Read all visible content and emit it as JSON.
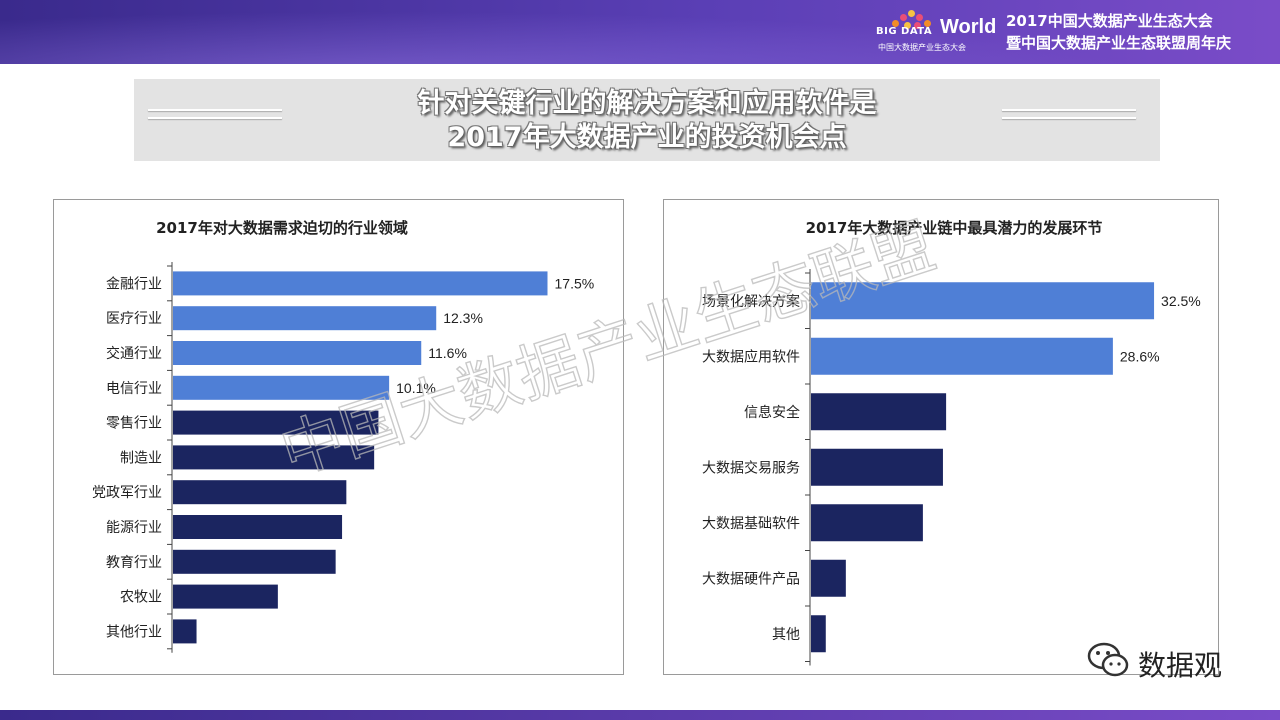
{
  "header": {
    "logo_big": "BIG DATA",
    "logo_world": "World",
    "logo_sub": "中国大数据产业生态大会",
    "conference_line1": "2017中国大数据产业生态大会",
    "conference_line2": "暨中国大数据产业生态联盟周年庆"
  },
  "headline": {
    "line1": "针对关键行业的解决方案和应用软件是",
    "line2": "2017年大数据产业的投资机会点"
  },
  "colors": {
    "light_bar": "#4f7fd6",
    "dark_bar": "#1b2560",
    "banner": "#4a35a3"
  },
  "chart_data": [
    {
      "type": "bar",
      "orientation": "horizontal",
      "title": "2017年对大数据需求迫切的行业领域",
      "categories": [
        "金融行业",
        "医疗行业",
        "交通行业",
        "电信行业",
        "零售行业",
        "制造业",
        "党政军行业",
        "能源行业",
        "教育行业",
        "农牧业",
        "其他行业"
      ],
      "values": [
        17.5,
        12.3,
        11.6,
        10.1,
        9.6,
        9.4,
        8.1,
        7.9,
        7.6,
        4.9,
        1.1
      ],
      "value_labels": [
        "17.5%",
        "12.3%",
        "11.6%",
        "10.1%",
        "",
        "",
        "",
        "",
        "",
        "",
        ""
      ],
      "highlight_count": 4,
      "xlim": [
        0,
        20
      ],
      "grid": false,
      "legend": "none"
    },
    {
      "type": "bar",
      "orientation": "horizontal",
      "title": "2017年大数据产业链中最具潜力的发展环节",
      "categories": [
        "场景化解决方案",
        "大数据应用软件",
        "信息安全",
        "大数据交易服务",
        "大数据基础软件",
        "大数据硬件产品",
        "其他"
      ],
      "values": [
        32.5,
        28.6,
        12.8,
        12.5,
        10.6,
        3.3,
        1.4
      ],
      "value_labels": [
        "32.5%",
        "28.6%",
        "",
        "",
        "",
        "",
        ""
      ],
      "highlight_count": 2,
      "xlim": [
        0,
        36
      ],
      "grid": false,
      "legend": "none"
    }
  ],
  "watermark": "中国大数据产业生态联盟",
  "footer": {
    "wechat_icon": "wechat-icon",
    "account_name": "数据观"
  }
}
